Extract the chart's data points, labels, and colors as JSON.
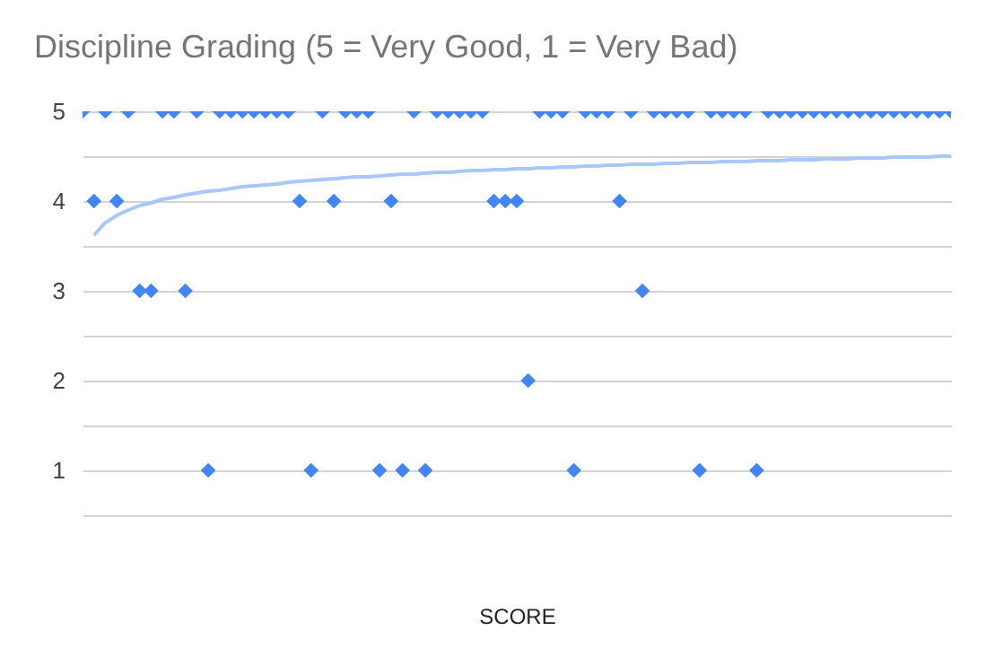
{
  "chart_data": {
    "type": "scatter",
    "title": "Discipline Grading (5 = Very Good, 1 = Very Bad)",
    "xlabel": "SCORE",
    "categories": [
      null,
      null,
      null,
      null,
      null,
      null,
      null,
      null,
      null,
      null,
      null,
      null,
      null,
      null,
      null,
      null,
      null,
      null,
      null,
      null,
      null,
      null,
      null,
      null,
      null,
      null,
      null,
      null,
      null,
      null,
      null,
      null,
      null,
      null,
      null,
      null,
      null,
      null,
      null,
      null,
      null,
      null,
      null,
      null,
      null,
      null,
      null,
      null,
      null,
      null,
      null,
      null,
      null,
      null,
      null,
      null,
      null,
      null,
      null,
      null,
      null,
      null,
      null,
      null,
      null,
      null,
      null,
      null,
      null,
      null,
      null,
      null,
      null,
      null,
      null,
      null,
      null
    ],
    "ylim": [
      0.5,
      5
    ],
    "yticks": [
      {
        "value": 0.5,
        "label": null
      },
      1,
      {
        "value": 1.5,
        "label": null
      },
      2,
      {
        "value": 2.5,
        "label": null
      },
      3,
      {
        "value": 3.5,
        "label": null
      },
      4,
      {
        "value": 4.5,
        "label": null
      },
      5
    ],
    "tick_labels": "y",
    "grid": "y",
    "marker": "diamond",
    "series": [
      {
        "type": "scatter",
        "color": "#4285f4",
        "values": [
          5,
          4,
          5,
          4,
          5,
          3,
          3,
          5,
          5,
          3,
          5,
          1,
          5,
          5,
          5,
          5,
          5,
          5,
          5,
          4,
          1,
          5,
          4,
          5,
          5,
          5,
          1,
          4,
          1,
          5,
          1,
          5,
          5,
          5,
          5,
          5,
          4,
          4,
          4,
          2,
          5,
          5,
          5,
          1,
          5,
          5,
          5,
          4,
          5,
          3,
          5,
          5,
          5,
          5,
          1,
          5,
          5,
          5,
          5,
          1,
          5,
          5,
          5,
          5,
          5,
          5,
          5,
          5,
          5,
          5,
          5,
          5,
          5,
          5,
          5,
          5,
          5
        ]
      },
      {
        "type": "line",
        "color": "#a8c7fa",
        "marker": "none",
        "values": [
          null,
          3.62,
          3.76,
          3.84,
          3.9,
          3.95,
          3.98,
          4.02,
          4.04,
          4.07,
          4.09,
          4.11,
          4.12,
          4.14,
          4.16,
          4.17,
          4.18,
          4.19,
          4.21,
          4.22,
          4.23,
          4.24,
          4.25,
          4.26,
          4.27,
          4.27,
          4.28,
          4.29,
          4.3,
          4.3,
          4.31,
          4.32,
          4.32,
          4.33,
          4.34,
          4.34,
          4.35,
          4.35,
          4.36,
          4.36,
          4.37,
          4.37,
          4.38,
          4.38,
          4.39,
          4.39,
          4.4,
          4.4,
          4.41,
          4.41,
          4.41,
          4.42,
          4.42,
          4.43,
          4.43,
          4.43,
          4.44,
          4.44,
          4.44,
          4.45,
          4.45,
          4.45,
          4.46,
          4.46,
          4.46,
          4.47,
          4.47,
          4.47,
          4.48,
          4.48,
          4.48,
          4.49,
          4.49,
          4.49,
          4.49,
          4.5,
          4.5
        ]
      }
    ]
  }
}
